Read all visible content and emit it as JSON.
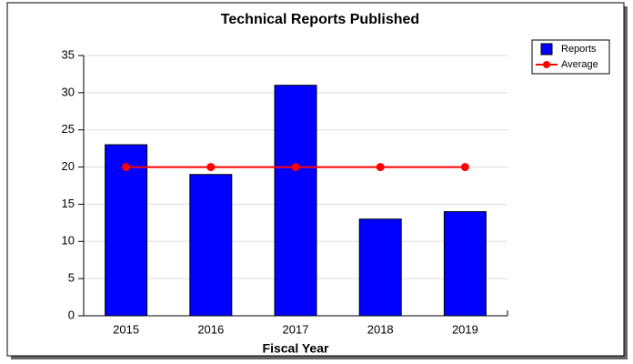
{
  "chart_data": {
    "type": "bar",
    "title": "Technical Reports Published",
    "x_label": "Fiscal Year",
    "categories": [
      "2015",
      "2016",
      "2017",
      "2018",
      "2019"
    ],
    "series": [
      {
        "name": "Reports",
        "type": "bar",
        "color": "#0000ff",
        "values": [
          23,
          19,
          31,
          13,
          14
        ]
      },
      {
        "name": "Average",
        "type": "line",
        "color": "#ff0000",
        "values": [
          20,
          20,
          20,
          20,
          20
        ]
      }
    ],
    "ylim": [
      0,
      35
    ],
    "yticks": [
      0,
      5,
      10,
      15,
      20,
      25,
      30,
      35
    ],
    "grid": true,
    "legend": "top-right"
  }
}
